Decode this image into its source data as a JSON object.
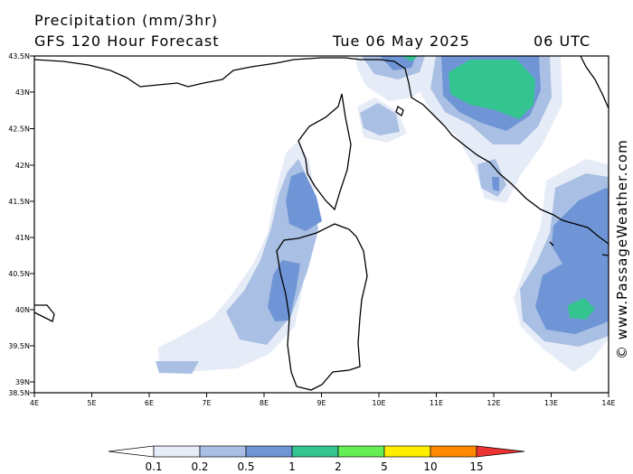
{
  "header": {
    "title_line1": "Precipitation (mm/3hr)",
    "title_line2": "GFS 120 Hour Forecast",
    "date": "Tue 06 May 2025",
    "time": "06 UTC"
  },
  "credit": "© www.PassageWeather.com",
  "map": {
    "lon_labels": [
      "4E",
      "5E",
      "6E",
      "7E",
      "8E",
      "9E",
      "10E",
      "11E",
      "12E",
      "13E",
      "14E"
    ],
    "lat_labels": [
      "43.5N",
      "43N",
      "42.5N",
      "42N",
      "41.5N",
      "41N",
      "40.5N",
      "40N",
      "39.5N",
      "39N",
      "38.5N"
    ]
  },
  "legend": {
    "labels": [
      "0.1",
      "0.2",
      "0.5",
      "1",
      "2",
      "5",
      "10",
      "15"
    ],
    "colors": [
      "#ffffff",
      "#e6ecf7",
      "#a9bfe3",
      "#6f95d6",
      "#33c48f",
      "#66ee55",
      "#ffee00",
      "#ff8800",
      "#ee3333"
    ]
  }
}
